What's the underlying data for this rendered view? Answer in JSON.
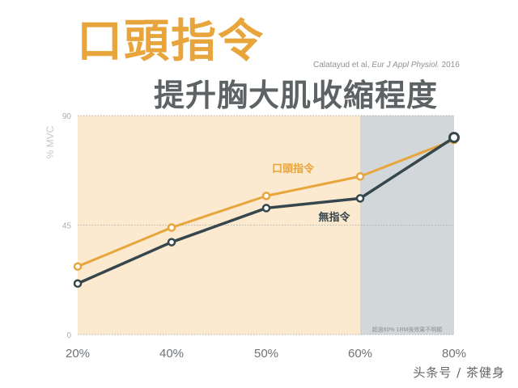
{
  "header": {
    "title": "口頭指令",
    "subtitle": "提升胸大肌收縮程度",
    "citation_authors": "Calatayud et al,",
    "citation_journal": "Eur J Appl Physiol.",
    "citation_year": "2016"
  },
  "watermark": "头条号 / 茶健身",
  "colors": {
    "orange": "#e8a53c",
    "dark": "#35474c",
    "region_light": "#fbe9d0",
    "region_gray": "#d2d7d9",
    "title_gray": "#5d6264",
    "axis_text": "#a9aeb0"
  },
  "chart_data": {
    "type": "line",
    "categories": [
      "20%",
      "40%",
      "50%",
      "60%",
      "80%"
    ],
    "ylabel": "% MVC",
    "ylim": [
      0,
      90
    ],
    "yticks": [
      0,
      45,
      90
    ],
    "grid": true,
    "series": [
      {
        "name": "口頭指令",
        "values": [
          28,
          44,
          57,
          65,
          80
        ]
      },
      {
        "name": "無指令",
        "values": [
          21,
          38,
          52,
          56,
          81
        ]
      }
    ],
    "shaded_region": {
      "from_category": "60%",
      "to_category": "80%",
      "label": "超過60% 1RM後效果不明顯"
    }
  }
}
